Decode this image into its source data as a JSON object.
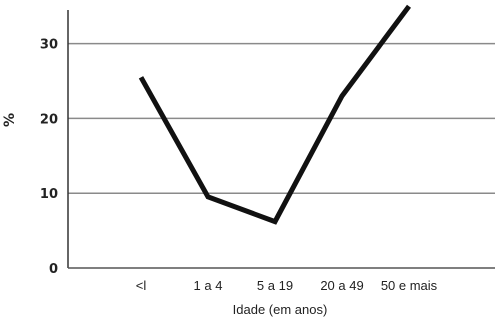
{
  "chart_data": {
    "type": "line",
    "categories": [
      "<l",
      "1 a 4",
      "5 a 19",
      "20 a 49",
      "50 e mais"
    ],
    "values": [
      25.5,
      9.5,
      6.2,
      23,
      35
    ],
    "xlabel": "Idade (em anos)",
    "ylabel": "%",
    "yticks": [
      "0",
      "10",
      "20",
      "30"
    ],
    "ylim": [
      0,
      35
    ],
    "grid": true,
    "line_color": "#111111",
    "grid_color": "#8a8a8a"
  }
}
